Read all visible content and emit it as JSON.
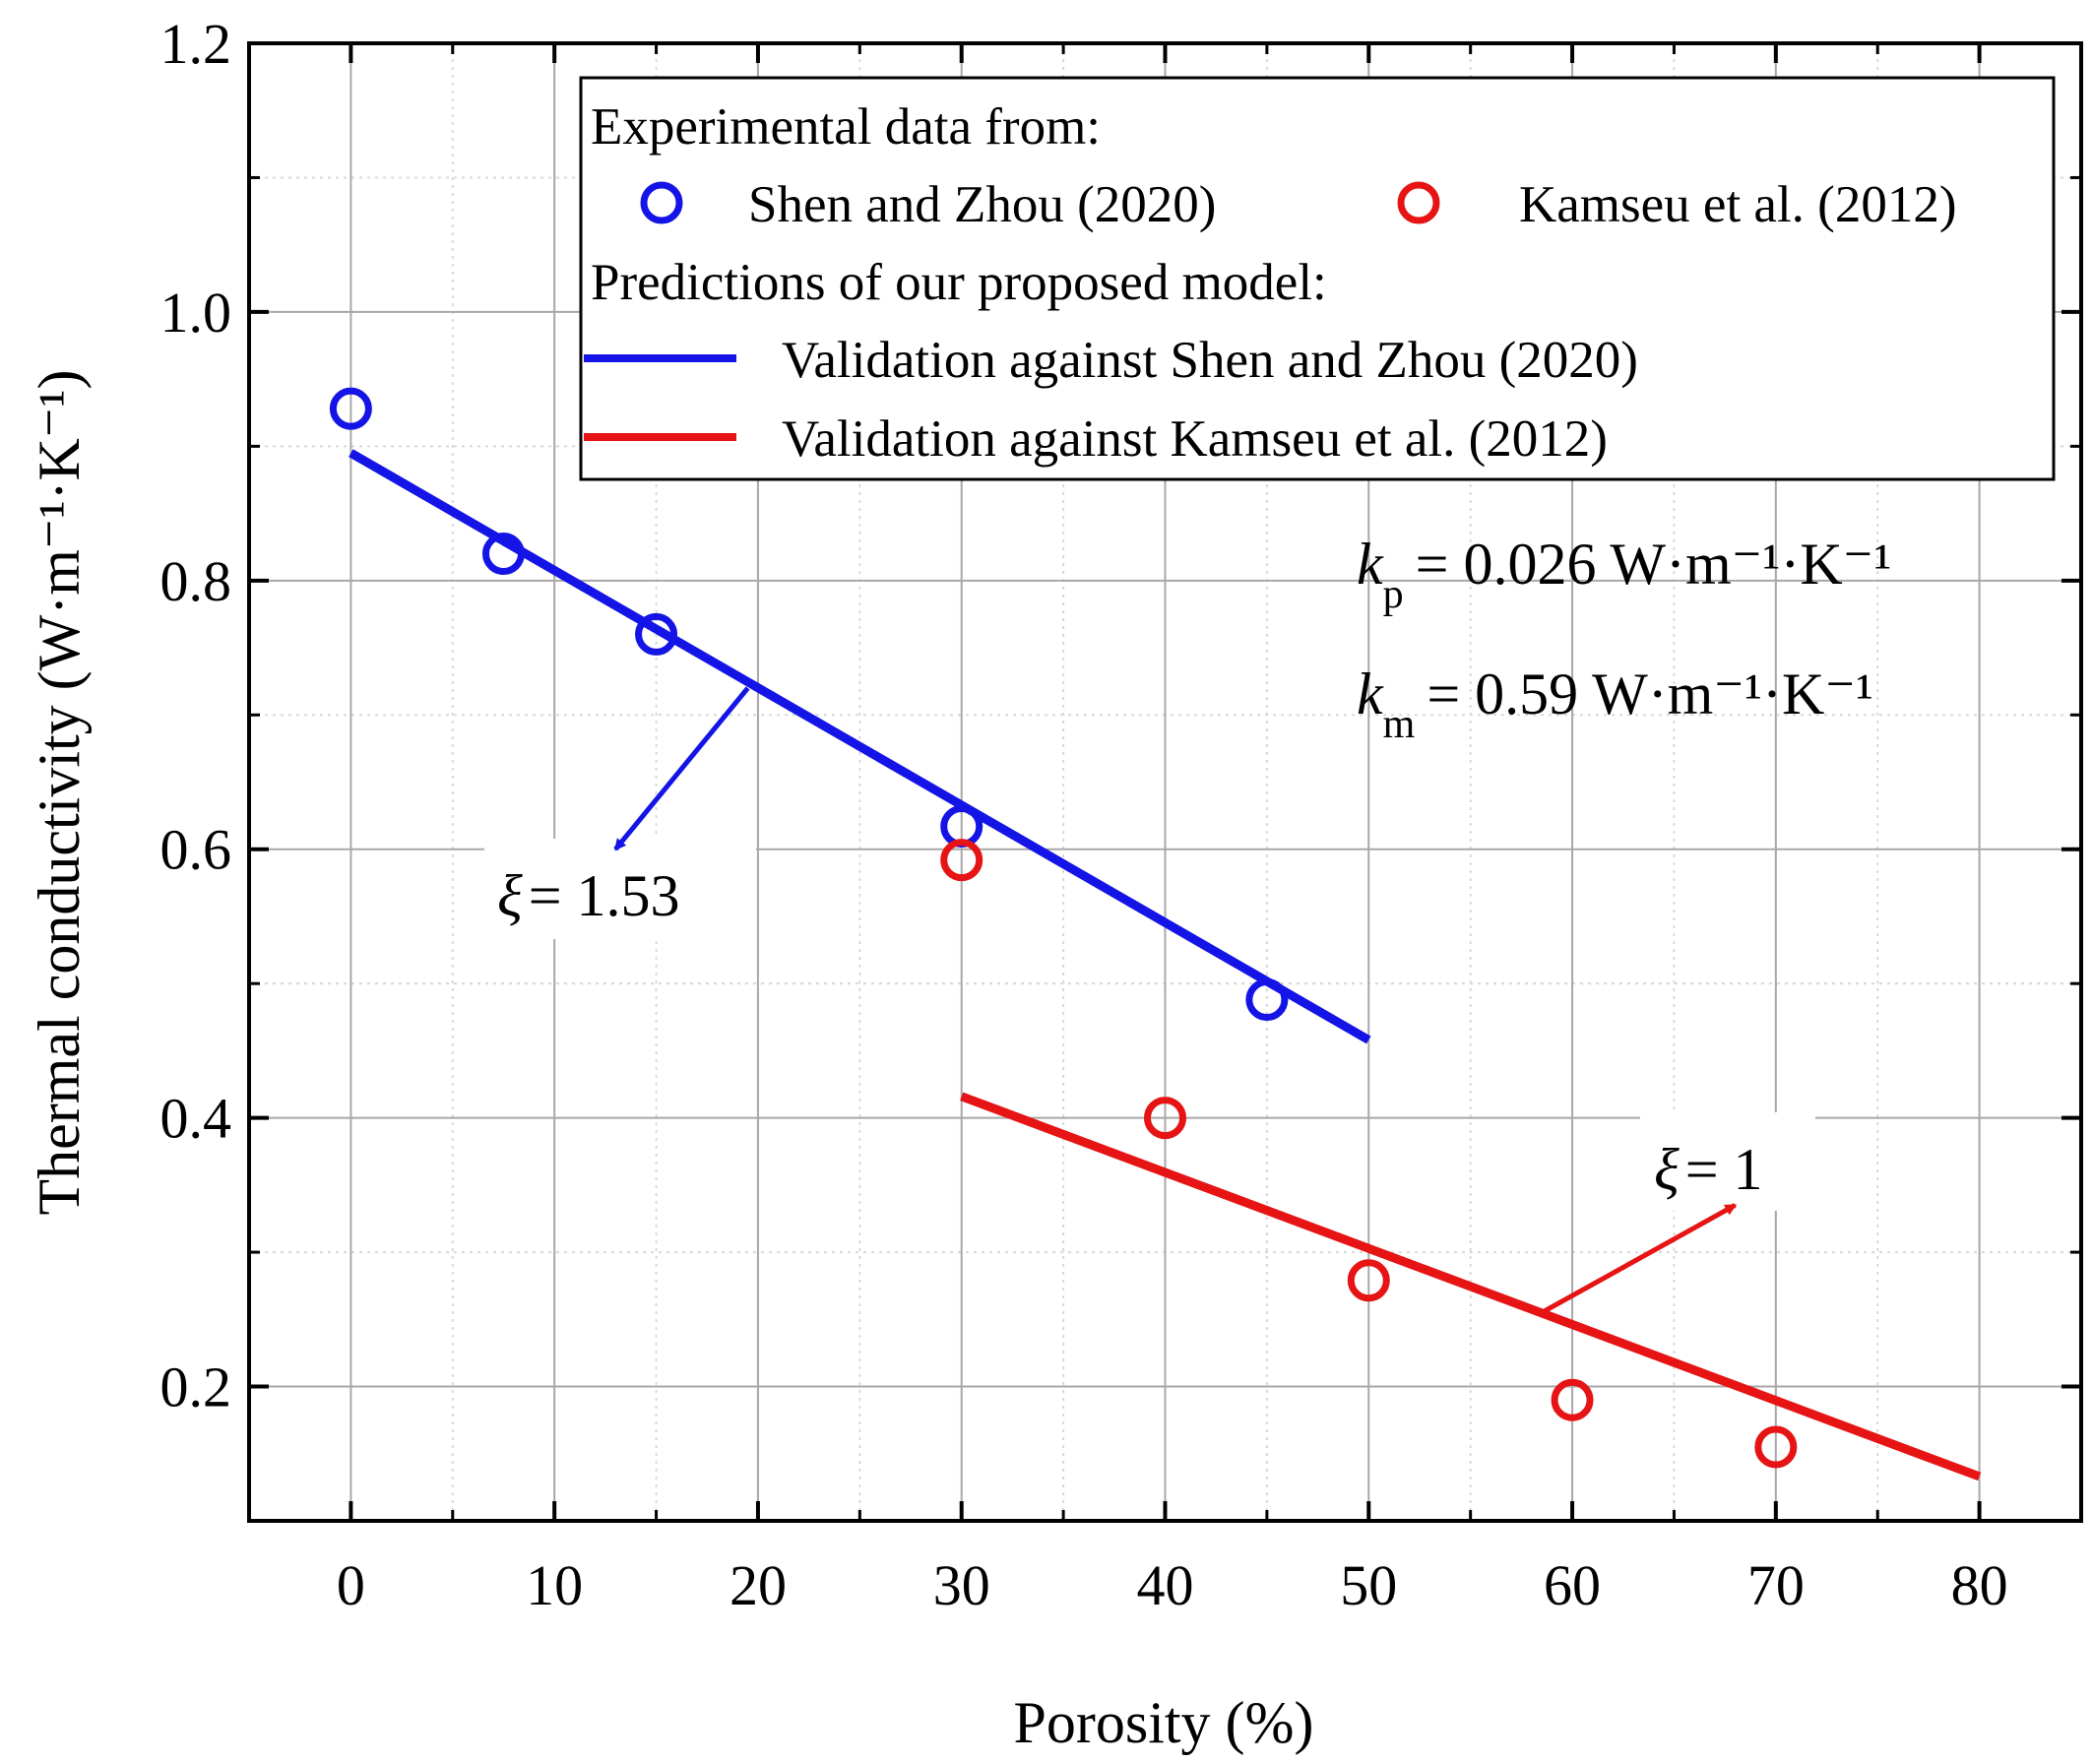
{
  "colors": {
    "blue": "#1414e6",
    "red": "#e61414",
    "grid": "#a8a8a8",
    "grid_minor": "#d8d8d8",
    "axis": "#000000"
  },
  "chart_data": {
    "type": "scatter",
    "xlabel": "Porosity (%)",
    "ylabel": "Thermal conductivity (W·m⁻¹·K⁻¹)",
    "xlim": [
      -5,
      85
    ],
    "ylim": [
      0.1,
      1.2
    ],
    "xticks": [
      "0",
      "10",
      "20",
      "30",
      "40",
      "50",
      "60",
      "70",
      "80"
    ],
    "xtick_values": [
      0,
      10,
      20,
      30,
      40,
      50,
      60,
      70,
      80
    ],
    "yticks": [
      "0.2",
      "0.4",
      "0.6",
      "0.8",
      "1.0",
      "1.2"
    ],
    "ytick_values": [
      0.2,
      0.4,
      0.6,
      0.8,
      1.0,
      1.2
    ],
    "grid": true,
    "legend_position": "top-right",
    "legend": {
      "header1": "Experimental data from:",
      "s1": "Shen and Zhou (2020)",
      "s2": "Kamseu et al. (2012)",
      "header2": "Predictions of our proposed model:",
      "l1": "Validation against Shen and Zhou (2020)",
      "l2": "Validation against Kamseu et al. (2012)"
    },
    "series": [
      {
        "name": "Shen and Zhou (2020)",
        "kind": "points",
        "color": "blue",
        "x": [
          0,
          7.5,
          15,
          30,
          45
        ],
        "y": [
          0.928,
          0.82,
          0.76,
          0.617,
          0.488
        ]
      },
      {
        "name": "Kamseu et al. (2012)",
        "kind": "points",
        "color": "red",
        "x": [
          30,
          40,
          50,
          60,
          70
        ],
        "y": [
          0.592,
          0.4,
          0.279,
          0.19,
          0.155
        ]
      },
      {
        "name": "Validation against Shen and Zhou (2020)",
        "kind": "line",
        "color": "blue",
        "x": [
          0,
          50
        ],
        "y": [
          0.895,
          0.458
        ]
      },
      {
        "name": "Validation against Kamseu et al. (2012)",
        "kind": "line",
        "color": "red",
        "x": [
          30,
          80
        ],
        "y": [
          0.416,
          0.133
        ]
      }
    ],
    "annotations": {
      "kp_sym": "k",
      "kp_sub": "p",
      "kp_val": "= 0.026 W·m⁻¹·K⁻¹",
      "km_sym": "k",
      "km_sub": "m",
      "km_val": "= 0.59 W·m⁻¹·K⁻¹",
      "xi_blue_sym": "ξ",
      "xi_blue_val": "= 1.53",
      "xi_red_sym": "ξ",
      "xi_red_val": "= 1",
      "arrow_blue": {
        "from": [
          19.5,
          0.72
        ],
        "to": [
          13,
          0.6
        ]
      },
      "arrow_red": {
        "from": [
          58.5,
          0.255
        ],
        "to": [
          68,
          0.335
        ]
      }
    }
  }
}
